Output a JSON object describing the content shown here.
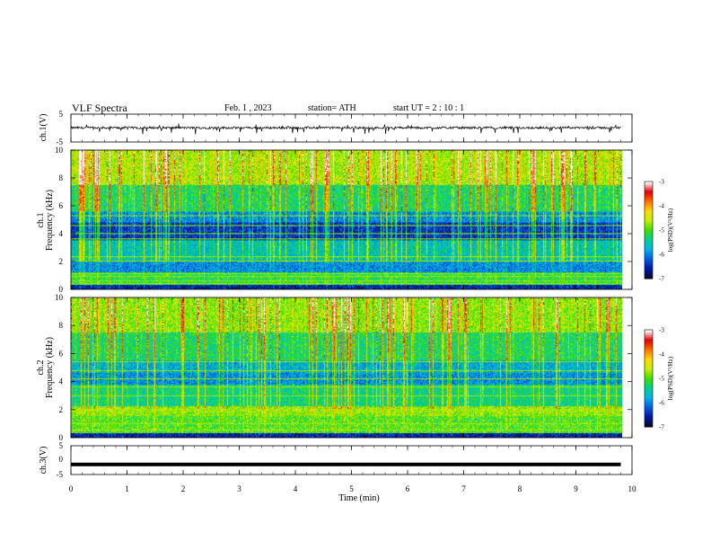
{
  "header": {
    "title": "VLF  Spectra",
    "date": "Feb. 1  , 2023",
    "station": "station= ATH",
    "start": "start  UT  =   2  : 10 : 1"
  },
  "colors": {
    "spectrogram_colormap": [
      "#0a0a30",
      "#0018a8",
      "#0060e8",
      "#00b4e6",
      "#00d090",
      "#40e000",
      "#c8f000",
      "#ffd800",
      "#ff7000",
      "#e00000",
      "#ffffff"
    ],
    "trace": "#000000"
  },
  "chart_data": [
    {
      "type": "line",
      "name_label": "ch.1(V)",
      "ylabel": "ch.1(V)",
      "ylim": [
        -5,
        5
      ],
      "yticks": [
        "5",
        "-5"
      ],
      "description_values": "noise trace near 0 V with spikes to about -1 to -2 V",
      "x_range_min": [
        0,
        9.8
      ],
      "baseline_v": 0.1
    },
    {
      "type": "heatmap",
      "ylabel": "ch.1\nFrequency  (kHz)",
      "ylabel_lines": [
        "ch.1",
        "Frequency  (kHz)"
      ],
      "ylim": [
        0,
        10
      ],
      "yticks": [
        "0",
        "2",
        "4",
        "6",
        "8",
        "10"
      ],
      "x_range_min": [
        0,
        9.8
      ],
      "colorbar": {
        "label": "log(PSD)(V²/Hz)",
        "range": [
          -7,
          -3
        ],
        "ticks": [
          "-3",
          "-4",
          "-5",
          "-6",
          "-7"
        ]
      },
      "bands_khz": [
        {
          "from": 0,
          "to": 0.3,
          "level": -6.6
        },
        {
          "from": 0.3,
          "to": 1.2,
          "level": -5.2
        },
        {
          "from": 1.2,
          "to": 2.0,
          "level": -6.0
        },
        {
          "from": 2.0,
          "to": 3.5,
          "level": -5.6
        },
        {
          "from": 3.5,
          "to": 4.8,
          "level": -6.5
        },
        {
          "from": 4.8,
          "to": 5.6,
          "level": -6.0
        },
        {
          "from": 5.6,
          "to": 7.5,
          "level": -5.3
        },
        {
          "from": 7.5,
          "to": 10,
          "level": -4.7
        }
      ],
      "lines_khz": [
        0.4,
        0.6,
        0.9,
        1.1,
        2.0,
        2.3,
        3.6,
        4.0,
        4.6,
        5.3
      ]
    },
    {
      "type": "heatmap",
      "ylabel": "ch.2\nFrequency  (kHz)",
      "ylabel_lines": [
        "ch.2",
        "Frequency  (kHz)"
      ],
      "ylim": [
        0,
        10
      ],
      "yticks": [
        "0",
        "2",
        "4",
        "6",
        "8",
        "10"
      ],
      "x_range_min": [
        0,
        9.8
      ],
      "colorbar": {
        "label": "log(PSD)(V²/Hz)",
        "range": [
          -7,
          -3
        ],
        "ticks": [
          "-3",
          "-4",
          "-5",
          "-6",
          "-7"
        ]
      },
      "bands_khz": [
        {
          "from": 0,
          "to": 0.3,
          "level": -6.6
        },
        {
          "from": 0.3,
          "to": 1.5,
          "level": -5.0
        },
        {
          "from": 1.5,
          "to": 2.2,
          "level": -4.8
        },
        {
          "from": 2.2,
          "to": 3.8,
          "level": -5.4
        },
        {
          "from": 3.8,
          "to": 4.6,
          "level": -6.0
        },
        {
          "from": 4.6,
          "to": 5.5,
          "level": -5.8
        },
        {
          "from": 5.5,
          "to": 7.5,
          "level": -5.3
        },
        {
          "from": 7.5,
          "to": 10,
          "level": -4.8
        }
      ],
      "lines_khz": [
        0.5,
        1.0,
        1.9,
        2.0,
        3.0,
        3.6,
        4.2,
        4.8,
        5.4
      ]
    },
    {
      "type": "line",
      "ylabel": "ch.3(V)",
      "ylim": [
        -5,
        5
      ],
      "yticks": [
        "5",
        "0",
        "-5"
      ],
      "x_range_min": [
        0,
        9.8
      ],
      "baseline_v": -1.5
    }
  ],
  "x_axis": {
    "label": "Time  (min)",
    "ticks": [
      "0",
      "1",
      "2",
      "3",
      "4",
      "5",
      "6",
      "7",
      "8",
      "9",
      "10"
    ],
    "range": [
      0,
      10
    ]
  }
}
